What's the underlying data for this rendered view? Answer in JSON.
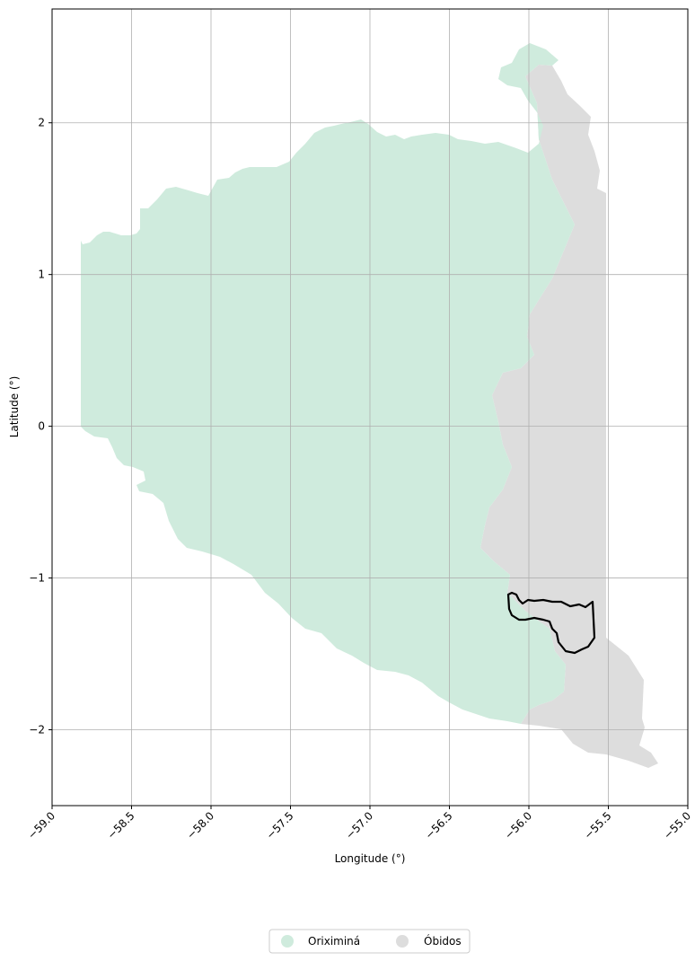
{
  "chart_data": {
    "type": "map",
    "title": "",
    "xlabel": "Longitude (°)",
    "ylabel": "Latitude (°)",
    "xlim": [
      -59.0,
      -55.0
    ],
    "ylim": [
      -2.5,
      2.75
    ],
    "x_ticks": [
      "−59.0",
      "−58.5",
      "−58.0",
      "−57.5",
      "−57.0",
      "−56.5",
      "−56.0",
      "−55.5",
      "−55.0"
    ],
    "y_ticks": [
      "2",
      "1",
      "0",
      "−1",
      "−2"
    ],
    "x_tick_values": [
      -59.0,
      -58.5,
      -58.0,
      -57.5,
      -57.0,
      -56.5,
      -56.0,
      -55.5,
      -55.0
    ],
    "y_tick_values": [
      2,
      1,
      0,
      -1,
      -2
    ],
    "x_tick_rotation": 45,
    "grid": true,
    "legend_position": "bottom-center",
    "series": [
      {
        "name": "Oriximiná",
        "color": "#cfebdd"
      },
      {
        "name": "Óbidos",
        "color": "#dddddd"
      }
    ],
    "highlight_outline_color": "#000000"
  }
}
